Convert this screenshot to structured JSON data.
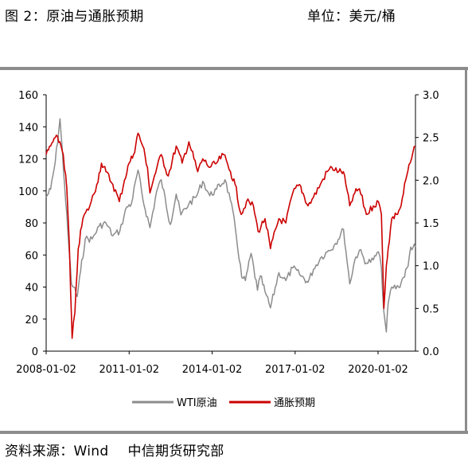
{
  "header": {
    "title": "图 2：原油与通胀预期",
    "unit": "单位：美元/桶"
  },
  "footer": {
    "source": "资料来源：Wind",
    "org": "中信期货研究部"
  },
  "colors": {
    "wti": "#8c8c8c",
    "inflation": "#cc0000",
    "frame": "#8c8c8c"
  },
  "chart_data": {
    "type": "line",
    "title": "",
    "xlabel": "",
    "ylabel": "",
    "x_ticks": [
      "2008-01-02",
      "2011-01-02",
      "2014-01-02",
      "2017-01-02",
      "2020-01-02"
    ],
    "y_left": {
      "lim": [
        0,
        160
      ],
      "ticks": [
        "0",
        "20",
        "40",
        "60",
        "80",
        "100",
        "120",
        "140",
        "160"
      ]
    },
    "y_right": {
      "lim": [
        0.0,
        3.0
      ],
      "ticks": [
        "0.0",
        "0.5",
        "1.0",
        "1.5",
        "2.0",
        "2.5",
        "3.0"
      ]
    },
    "x_range": [
      "2008-01-02",
      "2021-05-10"
    ],
    "legend_position": "bottom-center",
    "grid": false,
    "series": [
      {
        "name": "WTI原油",
        "axis": "left",
        "x": [
          "2008-01-02",
          "2008-03-01",
          "2008-05-01",
          "2008-07-03",
          "2008-09-01",
          "2008-10-15",
          "2008-12-01",
          "2009-01-01",
          "2009-02-15",
          "2009-04-01",
          "2009-06-01",
          "2009-09-01",
          "2009-12-01",
          "2010-03-01",
          "2010-06-01",
          "2010-09-01",
          "2010-12-01",
          "2011-02-01",
          "2011-04-29",
          "2011-07-01",
          "2011-10-04",
          "2012-01-01",
          "2012-03-01",
          "2012-06-28",
          "2012-09-14",
          "2012-11-15",
          "2013-03-01",
          "2013-06-01",
          "2013-09-01",
          "2013-12-01",
          "2014-03-01",
          "2014-06-20",
          "2014-09-01",
          "2014-11-01",
          "2015-01-28",
          "2015-03-17",
          "2015-06-01",
          "2015-08-24",
          "2015-10-01",
          "2015-12-01",
          "2016-02-11",
          "2016-06-01",
          "2016-09-01",
          "2016-12-01",
          "2017-03-01",
          "2017-06-21",
          "2017-09-01",
          "2017-12-01",
          "2018-03-01",
          "2018-06-01",
          "2018-10-03",
          "2018-12-24",
          "2019-03-01",
          "2019-05-01",
          "2019-08-01",
          "2019-11-01",
          "2020-01-06",
          "2020-02-15",
          "2020-03-18",
          "2020-04-20",
          "2020-05-15",
          "2020-07-01",
          "2020-10-01",
          "2020-12-01",
          "2021-02-01",
          "2021-03-08",
          "2021-05-10"
        ],
        "values": [
          96,
          101,
          118,
          145,
          104,
          74,
          42,
          40,
          34,
          50,
          70,
          70,
          78,
          80,
          72,
          75,
          90,
          92,
          113,
          95,
          77,
          100,
          107,
          79,
          98,
          85,
          92,
          96,
          106,
          97,
          101,
          107,
          94,
          78,
          46,
          44,
          61,
          38,
          47,
          37,
          27,
          49,
          44,
          52,
          48,
          43,
          51,
          58,
          62,
          66,
          76,
          42,
          57,
          63,
          55,
          57,
          62,
          52,
          25,
          12,
          30,
          40,
          40,
          46,
          53,
          65,
          65
        ]
      },
      {
        "name": "通胀预期",
        "axis": "right",
        "x": [
          "2008-01-02",
          "2008-03-01",
          "2008-05-01",
          "2008-07-01",
          "2008-08-15",
          "2008-10-01",
          "2008-11-01",
          "2008-11-20",
          "2008-12-10",
          "2009-01-15",
          "2009-03-01",
          "2009-05-01",
          "2009-08-01",
          "2009-11-01",
          "2010-01-01",
          "2010-03-01",
          "2010-06-01",
          "2010-08-25",
          "2010-11-01",
          "2011-01-01",
          "2011-03-01",
          "2011-04-29",
          "2011-07-01",
          "2011-09-01",
          "2011-10-04",
          "2011-12-01",
          "2012-03-01",
          "2012-06-01",
          "2012-09-14",
          "2012-12-01",
          "2013-03-01",
          "2013-06-25",
          "2013-09-01",
          "2013-12-01",
          "2014-03-01",
          "2014-06-01",
          "2014-09-01",
          "2014-11-01",
          "2015-01-20",
          "2015-04-01",
          "2015-07-01",
          "2015-09-01",
          "2015-12-01",
          "2016-02-11",
          "2016-06-01",
          "2016-09-01",
          "2016-12-01",
          "2017-03-01",
          "2017-06-21",
          "2017-09-01",
          "2017-12-01",
          "2018-03-01",
          "2018-05-01",
          "2018-08-01",
          "2018-10-01",
          "2018-12-24",
          "2019-03-01",
          "2019-05-01",
          "2019-08-01",
          "2019-11-01",
          "2020-01-06",
          "2020-02-15",
          "2020-03-19",
          "2020-04-20",
          "2020-05-15",
          "2020-07-01",
          "2020-09-01",
          "2020-11-01",
          "2021-01-01",
          "2021-03-01",
          "2021-05-10"
        ],
        "values": [
          2.3,
          2.4,
          2.5,
          2.45,
          2.3,
          1.9,
          1.3,
          0.7,
          0.15,
          0.45,
          1.2,
          1.55,
          1.7,
          1.95,
          2.2,
          2.1,
          1.95,
          1.75,
          2.0,
          2.2,
          2.3,
          2.55,
          2.4,
          2.15,
          1.85,
          2.05,
          2.3,
          2.05,
          2.4,
          2.2,
          2.45,
          2.1,
          2.25,
          2.15,
          2.2,
          2.3,
          2.1,
          1.95,
          1.6,
          1.75,
          1.7,
          1.4,
          1.55,
          1.2,
          1.55,
          1.5,
          1.85,
          1.95,
          1.7,
          1.8,
          1.95,
          2.1,
          2.15,
          2.1,
          2.1,
          1.7,
          1.85,
          1.9,
          1.6,
          1.7,
          1.75,
          1.6,
          0.5,
          1.0,
          1.2,
          1.55,
          1.6,
          1.7,
          2.0,
          2.2,
          2.4
        ]
      }
    ]
  }
}
